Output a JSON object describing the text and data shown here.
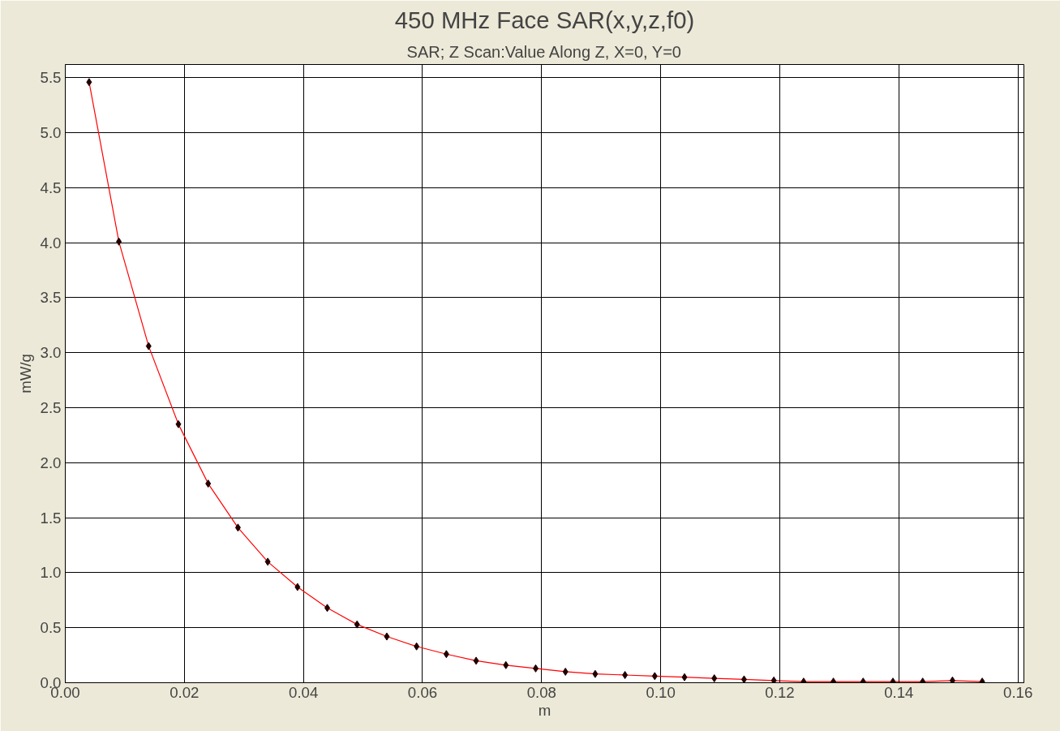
{
  "chart_data": {
    "type": "line",
    "title": "450 MHz Face SAR(x,y,z,f0)",
    "subtitle": "SAR; Z Scan:Value Along Z, X=0, Y=0",
    "xlabel": "m",
    "ylabel": "mW/g",
    "x": [
      0.004,
      0.009,
      0.014,
      0.019,
      0.024,
      0.029,
      0.034,
      0.039,
      0.044,
      0.049,
      0.054,
      0.059,
      0.064,
      0.069,
      0.074,
      0.079,
      0.084,
      0.089,
      0.094,
      0.099,
      0.104,
      0.109,
      0.114,
      0.119,
      0.124,
      0.129,
      0.134,
      0.139,
      0.144,
      0.149,
      0.154
    ],
    "series": [
      {
        "color": "#ff0000",
        "values": [
          5.46,
          4.01,
          3.06,
          2.35,
          1.81,
          1.41,
          1.1,
          0.87,
          0.68,
          0.53,
          0.42,
          0.33,
          0.26,
          0.2,
          0.16,
          0.13,
          0.1,
          0.08,
          0.07,
          0.06,
          0.05,
          0.04,
          0.03,
          0.02,
          0.01,
          0.01,
          0.01,
          0.01,
          0.01,
          0.02,
          0.01
        ]
      }
    ],
    "xlim": [
      0,
      0.161
    ],
    "ylim": [
      0,
      5.62
    ],
    "xticks": [
      {
        "value": 0,
        "label": "0.00"
      },
      {
        "value": 0.02,
        "label": "0.02"
      },
      {
        "value": 0.04,
        "label": "0.04"
      },
      {
        "value": 0.06,
        "label": "0.06"
      },
      {
        "value": 0.08,
        "label": "0.08"
      },
      {
        "value": 0.1,
        "label": "0.10"
      },
      {
        "value": 0.12,
        "label": "0.12"
      },
      {
        "value": 0.14,
        "label": "0.14"
      },
      {
        "value": 0.16,
        "label": "0.16"
      }
    ],
    "yticks": [
      {
        "value": 0,
        "label": "0.0"
      },
      {
        "value": 0.5,
        "label": "0.5"
      },
      {
        "value": 1,
        "label": "1.0"
      },
      {
        "value": 1.5,
        "label": "1.5"
      },
      {
        "value": 2,
        "label": "2.0"
      },
      {
        "value": 2.5,
        "label": "2.5"
      },
      {
        "value": 3,
        "label": "3.0"
      },
      {
        "value": 3.5,
        "label": "3.5"
      },
      {
        "value": 4,
        "label": "4.0"
      },
      {
        "value": 4.5,
        "label": "4.5"
      },
      {
        "value": 5,
        "label": "5.0"
      },
      {
        "value": 5.5,
        "label": "5.5"
      }
    ],
    "grid": true,
    "marker": "diamond",
    "line_style": "solid"
  }
}
